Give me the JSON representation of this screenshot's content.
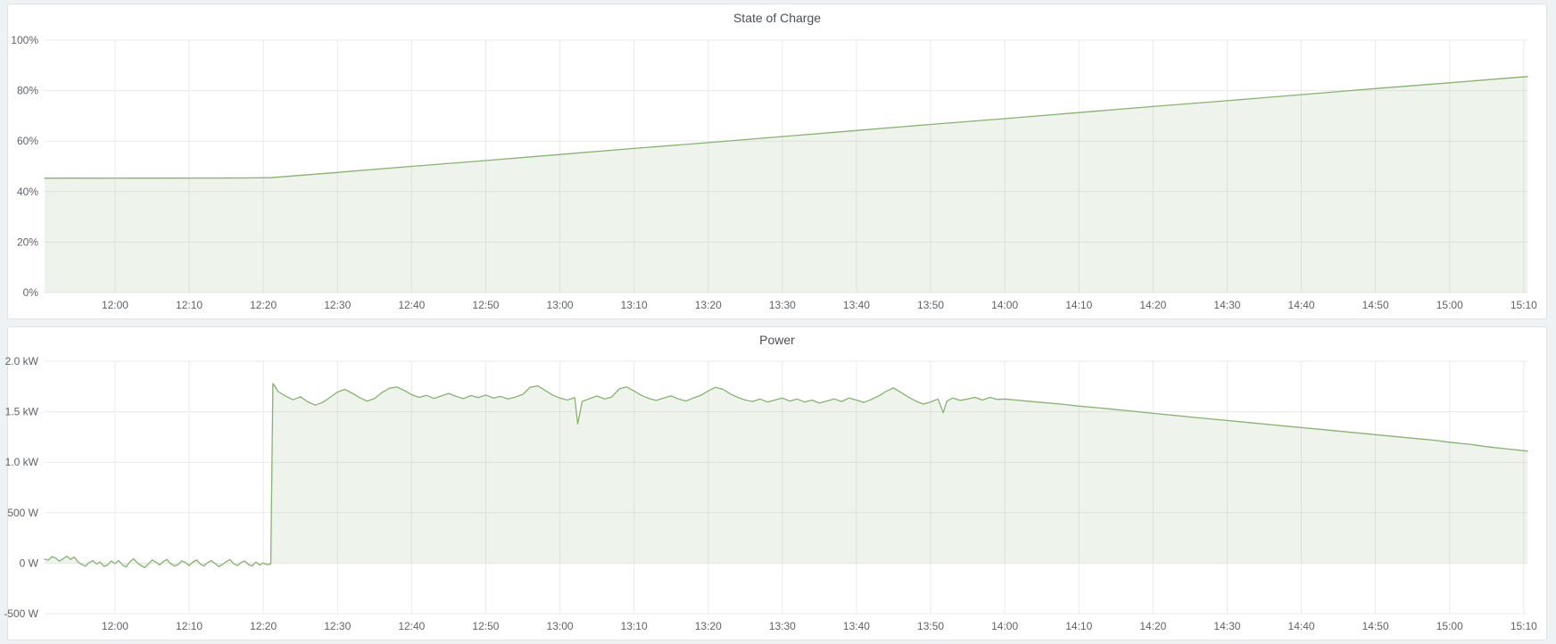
{
  "colors": {
    "page_bg": "#eff2f4",
    "panel_bg": "#ffffff",
    "panel_border": "#e0e2e4",
    "grid": "#e9eaec",
    "tick_text": "#5d6269",
    "title_text": "#4a4f55",
    "series_green": "#87b26f",
    "series_fill": "rgba(135,178,111,0.14)"
  },
  "panels": [
    {
      "title": "State of Charge"
    },
    {
      "title": "Power"
    }
  ],
  "chart_data": [
    {
      "type": "area",
      "title": "State of Charge",
      "xlabel": "",
      "ylabel": "",
      "grid": true,
      "legend": "none",
      "x_range_minutes": [
        710.5,
        910.5
      ],
      "x_ticks": [
        {
          "m": 720,
          "label": "12:00"
        },
        {
          "m": 730,
          "label": "12:10"
        },
        {
          "m": 740,
          "label": "12:20"
        },
        {
          "m": 750,
          "label": "12:30"
        },
        {
          "m": 760,
          "label": "12:40"
        },
        {
          "m": 770,
          "label": "12:50"
        },
        {
          "m": 780,
          "label": "13:00"
        },
        {
          "m": 790,
          "label": "13:10"
        },
        {
          "m": 800,
          "label": "13:20"
        },
        {
          "m": 810,
          "label": "13:30"
        },
        {
          "m": 820,
          "label": "13:40"
        },
        {
          "m": 830,
          "label": "13:50"
        },
        {
          "m": 840,
          "label": "14:00"
        },
        {
          "m": 850,
          "label": "14:10"
        },
        {
          "m": 860,
          "label": "14:20"
        },
        {
          "m": 870,
          "label": "14:30"
        },
        {
          "m": 880,
          "label": "14:40"
        },
        {
          "m": 890,
          "label": "14:50"
        },
        {
          "m": 900,
          "label": "15:00"
        },
        {
          "m": 910,
          "label": "15:10"
        }
      ],
      "y_range": [
        0,
        100
      ],
      "y_ticks": [
        {
          "v": 100,
          "label": "100%"
        },
        {
          "v": 80,
          "label": "80%"
        },
        {
          "v": 60,
          "label": "60%"
        },
        {
          "v": 40,
          "label": "40%"
        },
        {
          "v": 20,
          "label": "20%"
        },
        {
          "v": 0,
          "label": "0%"
        }
      ],
      "series": [
        {
          "name": "State of Charge",
          "unit": "%",
          "points": [
            [
              710.5,
              45.3
            ],
            [
              714,
              45.32
            ],
            [
              718,
              45.3
            ],
            [
              722,
              45.35
            ],
            [
              726,
              45.32
            ],
            [
              730,
              45.38
            ],
            [
              734,
              45.36
            ],
            [
              738,
              45.42
            ],
            [
              741,
              45.5
            ],
            [
              750,
              47.6
            ],
            [
              760,
              50.0
            ],
            [
              770,
              52.3
            ],
            [
              780,
              54.7
            ],
            [
              790,
              57.1
            ],
            [
              800,
              59.4
            ],
            [
              810,
              61.8
            ],
            [
              820,
              64.2
            ],
            [
              830,
              66.6
            ],
            [
              840,
              68.9
            ],
            [
              850,
              71.3
            ],
            [
              860,
              73.7
            ],
            [
              870,
              76.0
            ],
            [
              880,
              78.4
            ],
            [
              890,
              80.8
            ],
            [
              900,
              83.1
            ],
            [
              910.5,
              85.6
            ]
          ]
        }
      ]
    },
    {
      "type": "area",
      "title": "Power",
      "xlabel": "",
      "ylabel": "",
      "grid": true,
      "legend": "none",
      "x_range_minutes": [
        710.5,
        910.5
      ],
      "x_ticks": [
        {
          "m": 720,
          "label": "12:00"
        },
        {
          "m": 730,
          "label": "12:10"
        },
        {
          "m": 740,
          "label": "12:20"
        },
        {
          "m": 750,
          "label": "12:30"
        },
        {
          "m": 760,
          "label": "12:40"
        },
        {
          "m": 770,
          "label": "12:50"
        },
        {
          "m": 780,
          "label": "13:00"
        },
        {
          "m": 790,
          "label": "13:10"
        },
        {
          "m": 800,
          "label": "13:20"
        },
        {
          "m": 810,
          "label": "13:30"
        },
        {
          "m": 820,
          "label": "13:40"
        },
        {
          "m": 830,
          "label": "13:50"
        },
        {
          "m": 840,
          "label": "14:00"
        },
        {
          "m": 850,
          "label": "14:10"
        },
        {
          "m": 860,
          "label": "14:20"
        },
        {
          "m": 870,
          "label": "14:30"
        },
        {
          "m": 880,
          "label": "14:40"
        },
        {
          "m": 890,
          "label": "14:50"
        },
        {
          "m": 900,
          "label": "15:00"
        },
        {
          "m": 910,
          "label": "15:10"
        }
      ],
      "y_range": [
        -500,
        2000
      ],
      "y_ticks": [
        {
          "v": 2000,
          "label": "2.0 kW"
        },
        {
          "v": 1500,
          "label": "1.5 kW"
        },
        {
          "v": 1000,
          "label": "1.0 kW"
        },
        {
          "v": 500,
          "label": "500 W"
        },
        {
          "v": 0,
          "label": "0 W"
        },
        {
          "v": -500,
          "label": "-500 W"
        }
      ],
      "series": [
        {
          "name": "Power",
          "unit": "W",
          "points": [
            [
              710.5,
              40
            ],
            [
              711,
              30
            ],
            [
              711.5,
              65
            ],
            [
              712,
              50
            ],
            [
              712.5,
              20
            ],
            [
              713,
              45
            ],
            [
              713.5,
              70
            ],
            [
              714,
              38
            ],
            [
              714.5,
              62
            ],
            [
              715,
              12
            ],
            [
              715.5,
              -12
            ],
            [
              716,
              -30
            ],
            [
              716.5,
              6
            ],
            [
              717,
              26
            ],
            [
              717.5,
              -8
            ],
            [
              718,
              12
            ],
            [
              718.5,
              -32
            ],
            [
              719,
              -18
            ],
            [
              719.5,
              22
            ],
            [
              720,
              -4
            ],
            [
              720.5,
              26
            ],
            [
              721,
              -18
            ],
            [
              721.5,
              -38
            ],
            [
              722,
              16
            ],
            [
              722.5,
              42
            ],
            [
              723,
              6
            ],
            [
              723.5,
              -24
            ],
            [
              724,
              -44
            ],
            [
              724.5,
              -8
            ],
            [
              725,
              32
            ],
            [
              725.5,
              12
            ],
            [
              726,
              -18
            ],
            [
              726.5,
              16
            ],
            [
              727,
              36
            ],
            [
              727.5,
              -4
            ],
            [
              728,
              -28
            ],
            [
              728.5,
              -14
            ],
            [
              729,
              22
            ],
            [
              729.5,
              6
            ],
            [
              730,
              -24
            ],
            [
              730.5,
              12
            ],
            [
              731,
              32
            ],
            [
              731.5,
              -8
            ],
            [
              732,
              -28
            ],
            [
              732.5,
              6
            ],
            [
              733,
              26
            ],
            [
              733.5,
              -4
            ],
            [
              734,
              -34
            ],
            [
              734.5,
              -14
            ],
            [
              735,
              16
            ],
            [
              735.5,
              36
            ],
            [
              736,
              -4
            ],
            [
              736.5,
              -24
            ],
            [
              737,
              6
            ],
            [
              737.5,
              22
            ],
            [
              738,
              -14
            ],
            [
              738.5,
              -28
            ],
            [
              739,
              12
            ],
            [
              739.5,
              -18
            ],
            [
              740,
              2
            ],
            [
              740.5,
              -14
            ],
            [
              741,
              -8
            ],
            [
              741.3,
              1780
            ],
            [
              742,
              1700
            ],
            [
              743,
              1655
            ],
            [
              744,
              1618
            ],
            [
              745,
              1648
            ],
            [
              746,
              1598
            ],
            [
              747,
              1565
            ],
            [
              748,
              1592
            ],
            [
              749,
              1642
            ],
            [
              750,
              1695
            ],
            [
              751,
              1722
            ],
            [
              752,
              1682
            ],
            [
              753,
              1640
            ],
            [
              754,
              1606
            ],
            [
              755,
              1632
            ],
            [
              756,
              1690
            ],
            [
              757,
              1732
            ],
            [
              758,
              1745
            ],
            [
              759,
              1712
            ],
            [
              760,
              1670
            ],
            [
              761,
              1642
            ],
            [
              762,
              1662
            ],
            [
              763,
              1632
            ],
            [
              764,
              1656
            ],
            [
              765,
              1682
            ],
            [
              766,
              1652
            ],
            [
              767,
              1630
            ],
            [
              768,
              1660
            ],
            [
              769,
              1640
            ],
            [
              770,
              1666
            ],
            [
              771,
              1636
            ],
            [
              772,
              1652
            ],
            [
              773,
              1626
            ],
            [
              774,
              1646
            ],
            [
              775,
              1672
            ],
            [
              776,
              1742
            ],
            [
              777,
              1756
            ],
            [
              778,
              1712
            ],
            [
              779,
              1666
            ],
            [
              780,
              1636
            ],
            [
              781,
              1616
            ],
            [
              782,
              1640
            ],
            [
              782.4,
              1380
            ],
            [
              783,
              1602
            ],
            [
              784,
              1630
            ],
            [
              785,
              1656
            ],
            [
              786,
              1626
            ],
            [
              787,
              1646
            ],
            [
              788,
              1726
            ],
            [
              789,
              1746
            ],
            [
              790,
              1706
            ],
            [
              791,
              1662
            ],
            [
              792,
              1632
            ],
            [
              793,
              1612
            ],
            [
              794,
              1636
            ],
            [
              795,
              1656
            ],
            [
              796,
              1626
            ],
            [
              797,
              1606
            ],
            [
              798,
              1636
            ],
            [
              799,
              1662
            ],
            [
              800,
              1706
            ],
            [
              801,
              1742
            ],
            [
              802,
              1722
            ],
            [
              803,
              1676
            ],
            [
              804,
              1642
            ],
            [
              805,
              1616
            ],
            [
              806,
              1602
            ],
            [
              807,
              1626
            ],
            [
              808,
              1596
            ],
            [
              809,
              1616
            ],
            [
              810,
              1636
            ],
            [
              811,
              1606
            ],
            [
              812,
              1626
            ],
            [
              813,
              1596
            ],
            [
              814,
              1616
            ],
            [
              815,
              1586
            ],
            [
              816,
              1606
            ],
            [
              817,
              1626
            ],
            [
              818,
              1602
            ],
            [
              819,
              1636
            ],
            [
              820,
              1616
            ],
            [
              821,
              1592
            ],
            [
              822,
              1622
            ],
            [
              823,
              1656
            ],
            [
              824,
              1702
            ],
            [
              825,
              1736
            ],
            [
              826,
              1692
            ],
            [
              827,
              1646
            ],
            [
              828,
              1606
            ],
            [
              829,
              1576
            ],
            [
              830,
              1596
            ],
            [
              831,
              1626
            ],
            [
              831.7,
              1490
            ],
            [
              832.2,
              1606
            ],
            [
              833,
              1636
            ],
            [
              834,
              1612
            ],
            [
              835,
              1626
            ],
            [
              836,
              1642
            ],
            [
              837,
              1616
            ],
            [
              838,
              1642
            ],
            [
              839,
              1622
            ],
            [
              840,
              1626
            ],
            [
              842,
              1612
            ],
            [
              845,
              1592
            ],
            [
              848,
              1572
            ],
            [
              850,
              1556
            ],
            [
              853,
              1536
            ],
            [
              855,
              1521
            ],
            [
              858,
              1500
            ],
            [
              860,
              1484
            ],
            [
              863,
              1463
            ],
            [
              865,
              1448
            ],
            [
              868,
              1427
            ],
            [
              870,
              1413
            ],
            [
              873,
              1392
            ],
            [
              875,
              1378
            ],
            [
              878,
              1357
            ],
            [
              880,
              1343
            ],
            [
              883,
              1322
            ],
            [
              885,
              1308
            ],
            [
              888,
              1287
            ],
            [
              890,
              1273
            ],
            [
              893,
              1252
            ],
            [
              895,
              1238
            ],
            [
              898,
              1217
            ],
            [
              900,
              1198
            ],
            [
              903,
              1175
            ],
            [
              905,
              1154
            ],
            [
              908,
              1130
            ],
            [
              910.5,
              1110
            ]
          ]
        }
      ]
    }
  ]
}
